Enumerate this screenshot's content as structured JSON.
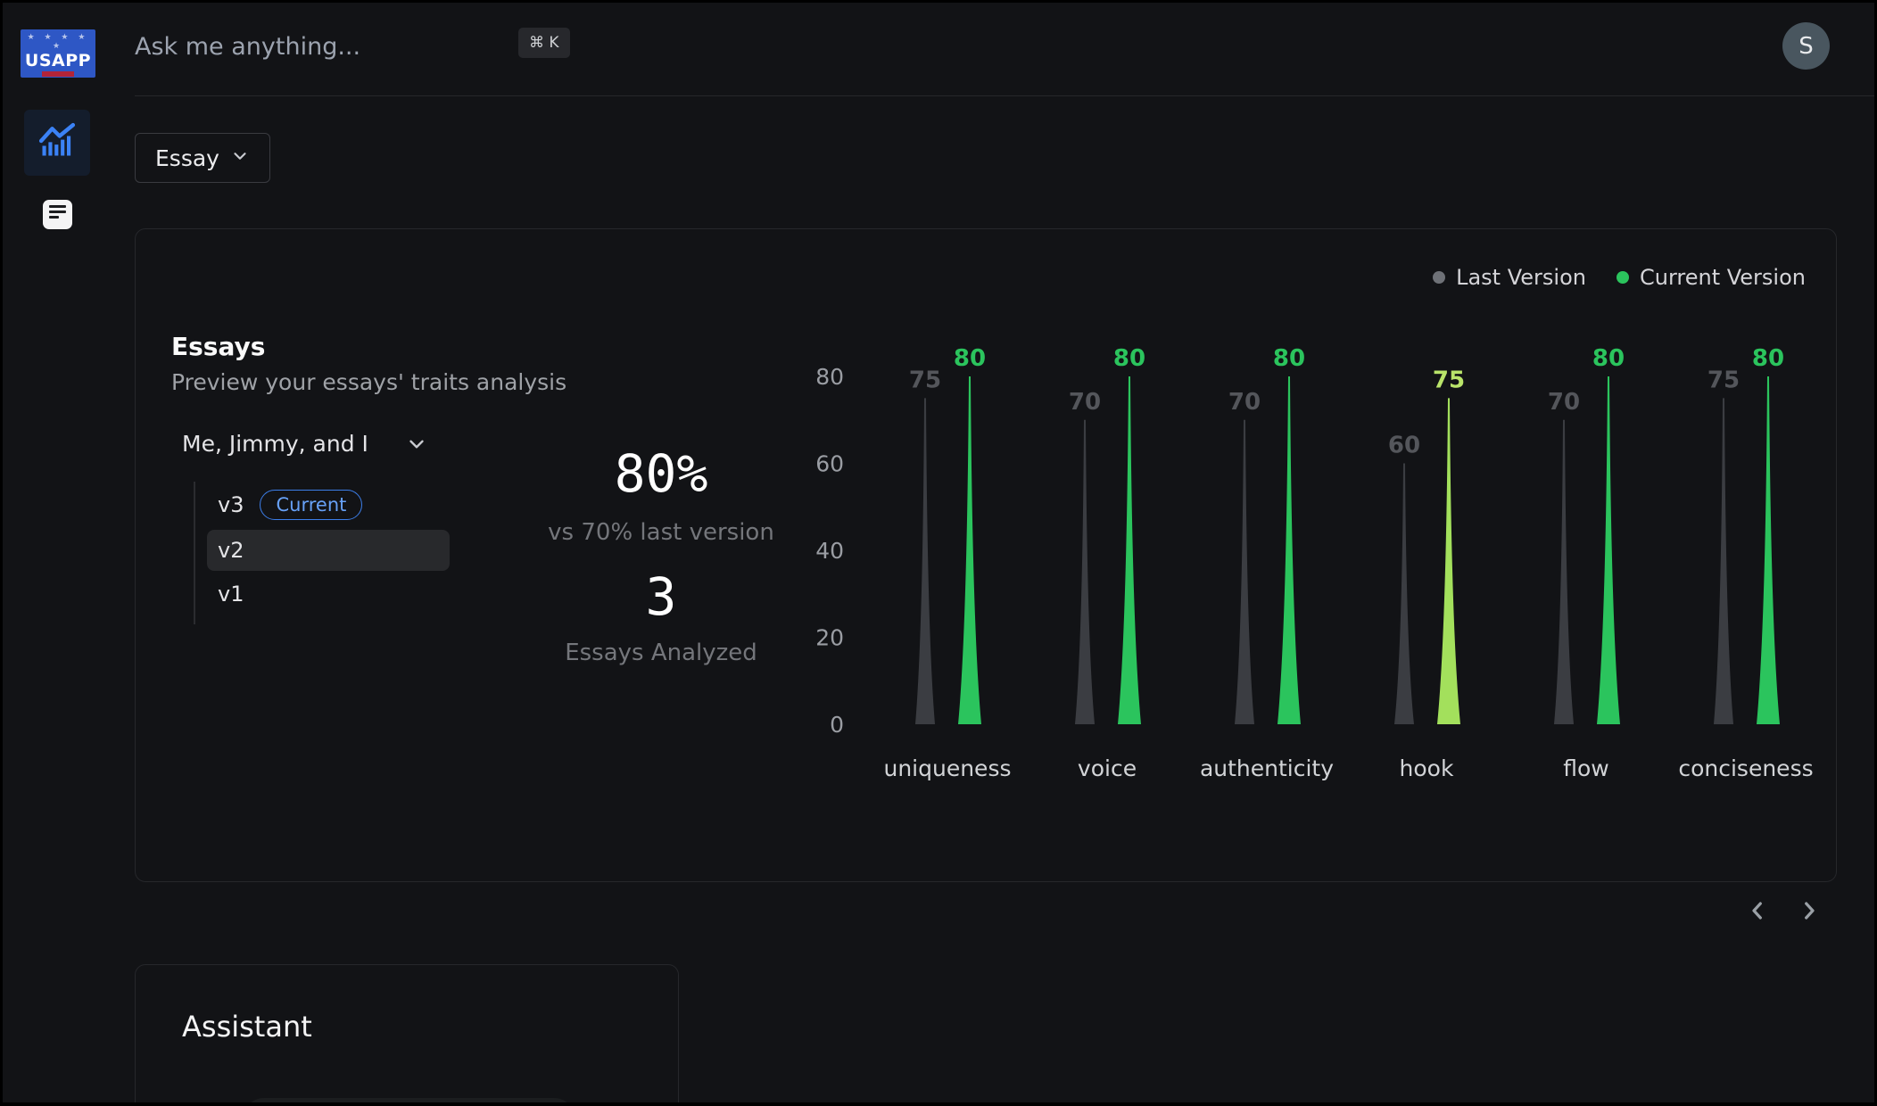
{
  "logo": {
    "text": "USAPP",
    "stars": "★ ★ ★ ★ ★"
  },
  "topbar": {
    "search_placeholder": "Ask me anything...",
    "shortcut": "⌘ K",
    "avatar_initial": "S"
  },
  "sidebar": {
    "items": [
      {
        "icon": "bar-chart-icon",
        "active": true
      },
      {
        "icon": "document-icon",
        "active": false
      }
    ]
  },
  "filter_button": {
    "label": "Essay",
    "icon": "chevron-down-icon"
  },
  "essays_card": {
    "title": "Essays",
    "subtitle": "Preview your essays' traits analysis",
    "legend": [
      {
        "label": "Last Version",
        "color": "#6e7177"
      },
      {
        "label": "Current Version",
        "color": "#2bc45d"
      }
    ],
    "essay_selector": {
      "value": "Me, Jimmy, and I",
      "icon": "chevron-down-icon"
    },
    "versions": [
      {
        "label": "v3",
        "badge": "Current",
        "state": "current"
      },
      {
        "label": "v2",
        "state": "selected"
      },
      {
        "label": "v1",
        "state": ""
      }
    ],
    "stats": {
      "score": "80%",
      "comparison": "vs 70% last version",
      "analyzed_count": "3",
      "analyzed_label": "Essays Analyzed"
    }
  },
  "chart_data": {
    "type": "bar",
    "bar_style": "needle",
    "categories": [
      "uniqueness",
      "voice",
      "authenticity",
      "hook",
      "flow",
      "conciseness"
    ],
    "series": [
      {
        "name": "Last Version",
        "values": [
          75,
          70,
          70,
          60,
          70,
          75
        ],
        "color": "#3b3d42",
        "label_color": "#54565b"
      },
      {
        "name": "Current Version",
        "values": [
          80,
          80,
          80,
          75,
          80,
          80
        ],
        "point_colors": [
          "#2bc45d",
          "#2bc45d",
          "#2bc45d",
          "#a3e05c",
          "#2bc45d",
          "#2bc45d"
        ],
        "label_colors": [
          "#2bc45d",
          "#2bc45d",
          "#2bc45d",
          "#b9e46a",
          "#2bc45d",
          "#2bc45d"
        ]
      }
    ],
    "yticks": [
      0,
      20,
      40,
      60,
      80
    ],
    "ylim": [
      0,
      80
    ],
    "grid": false,
    "legend_position": "top-right",
    "tick_color": "#9a9da3",
    "category_color": "#d2d4d7"
  },
  "pagination": {
    "prev_icon": "chevron-left-icon",
    "next_icon": "chevron-right-icon"
  },
  "assistant": {
    "title": "Assistant"
  }
}
